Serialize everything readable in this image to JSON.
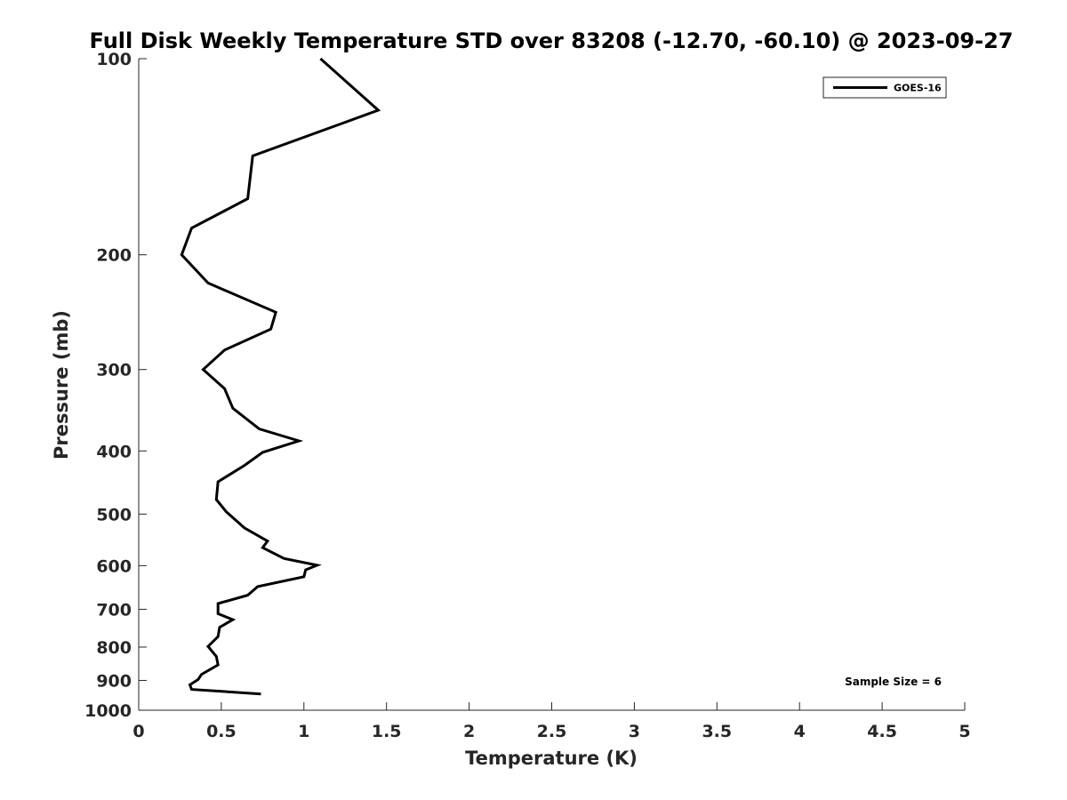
{
  "chart_data": {
    "type": "line",
    "title": "Full Disk Weekly Temperature STD over 83208 (-12.70, -60.10) @ 2023-09-27",
    "xlabel": "Temperature (K)",
    "ylabel": "Pressure (mb)",
    "xlim": [
      0,
      5
    ],
    "ylim": [
      100,
      1000
    ],
    "y_scale": "log",
    "y_reversed": true,
    "grid": false,
    "x_ticks": [
      "0",
      "0.5",
      "1",
      "1.5",
      "2",
      "2.5",
      "3",
      "3.5",
      "4",
      "4.5",
      "5"
    ],
    "y_ticks": [
      "100",
      "200",
      "300",
      "400",
      "500",
      "600",
      "700",
      "800",
      "900",
      "1000"
    ],
    "legend_position": "top-right",
    "annotation": "Sample Size = 6",
    "series": [
      {
        "name": "GOES-16",
        "color": "#000000",
        "points": [
          [
            1.1,
            100
          ],
          [
            1.45,
            120
          ],
          [
            0.69,
            141
          ],
          [
            0.66,
            164
          ],
          [
            0.32,
            182
          ],
          [
            0.26,
            200
          ],
          [
            0.42,
            221
          ],
          [
            0.83,
            245
          ],
          [
            0.8,
            260
          ],
          [
            0.52,
            280
          ],
          [
            0.39,
            300
          ],
          [
            0.52,
            321
          ],
          [
            0.57,
            344
          ],
          [
            0.73,
            370
          ],
          [
            0.97,
            386
          ],
          [
            0.75,
            402
          ],
          [
            0.64,
            421
          ],
          [
            0.48,
            446
          ],
          [
            0.47,
            475
          ],
          [
            0.53,
            496
          ],
          [
            0.64,
            525
          ],
          [
            0.78,
            550
          ],
          [
            0.75,
            563
          ],
          [
            0.88,
            585
          ],
          [
            1.08,
            599
          ],
          [
            1.01,
            609
          ],
          [
            1.0,
            624
          ],
          [
            0.72,
            646
          ],
          [
            0.66,
            666
          ],
          [
            0.48,
            686
          ],
          [
            0.48,
            711
          ],
          [
            0.57,
            726
          ],
          [
            0.49,
            746
          ],
          [
            0.48,
            771
          ],
          [
            0.42,
            798
          ],
          [
            0.47,
            827
          ],
          [
            0.48,
            852
          ],
          [
            0.38,
            881
          ],
          [
            0.36,
            897
          ],
          [
            0.31,
            914
          ],
          [
            0.32,
            929
          ],
          [
            0.74,
            944
          ]
        ]
      }
    ]
  }
}
